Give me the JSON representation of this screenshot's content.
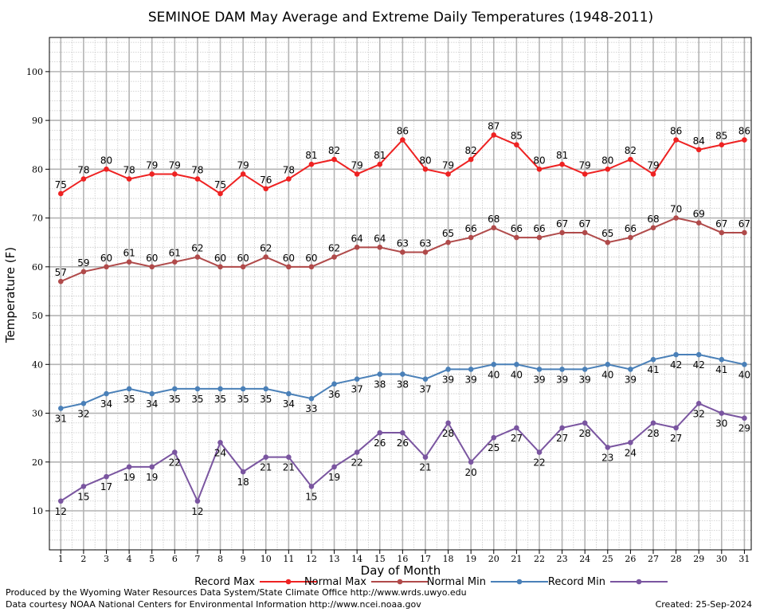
{
  "chart_data": {
    "type": "line",
    "title": "SEMINOE DAM May Average and Extreme Daily Temperatures (1948-2011)",
    "xlabel": "Day of Month",
    "ylabel": "Temperature (F)",
    "x": [
      1,
      2,
      3,
      4,
      5,
      6,
      7,
      8,
      9,
      10,
      11,
      12,
      13,
      14,
      15,
      16,
      17,
      18,
      19,
      20,
      21,
      22,
      23,
      24,
      25,
      26,
      27,
      28,
      29,
      30,
      31
    ],
    "xlim": [
      0.5,
      31.3
    ],
    "ylim": [
      2,
      107
    ],
    "y_ticks": [
      10,
      20,
      30,
      40,
      50,
      60,
      70,
      80,
      90,
      100
    ],
    "grid": true,
    "legend_position": "bottom",
    "series": [
      {
        "name": "Record Max",
        "color": "#ee2222",
        "label_pos": "above",
        "values": [
          75,
          78,
          80,
          78,
          79,
          79,
          78,
          75,
          79,
          76,
          78,
          81,
          82,
          79,
          81,
          86,
          80,
          79,
          82,
          87,
          85,
          80,
          81,
          79,
          80,
          82,
          79,
          86,
          84,
          85,
          86
        ]
      },
      {
        "name": "Normal Max",
        "color": "#b04a4a",
        "label_pos": "above",
        "values": [
          57,
          59,
          60,
          61,
          60,
          61,
          62,
          60,
          60,
          62,
          60,
          60,
          62,
          64,
          64,
          63,
          63,
          65,
          66,
          68,
          66,
          66,
          67,
          67,
          65,
          66,
          68,
          70,
          69,
          67,
          67
        ]
      },
      {
        "name": "Normal Min",
        "color": "#4a80b8",
        "label_pos": "below",
        "values": [
          31,
          32,
          34,
          35,
          34,
          35,
          35,
          35,
          35,
          35,
          34,
          33,
          36,
          37,
          38,
          38,
          37,
          39,
          39,
          40,
          40,
          39,
          39,
          39,
          40,
          39,
          41,
          42,
          42,
          41,
          40
        ]
      },
      {
        "name": "Record Min",
        "color": "#7a55a0",
        "label_pos": "below",
        "values": [
          12,
          15,
          17,
          19,
          19,
          22,
          12,
          24,
          18,
          21,
          21,
          15,
          19,
          22,
          26,
          26,
          21,
          28,
          20,
          25,
          27,
          22,
          27,
          28,
          23,
          24,
          28,
          27,
          32,
          30,
          29
        ]
      }
    ]
  },
  "footer": {
    "produced_by": "Produced by the Wyoming Water Resources Data System/State Climate Office http://www.wrds.uwyo.edu",
    "courtesy": "Data courtesy NOAA National Centers for Environmental Information http://www.ncei.noaa.gov",
    "created": "Created:  25-Sep-2024"
  }
}
